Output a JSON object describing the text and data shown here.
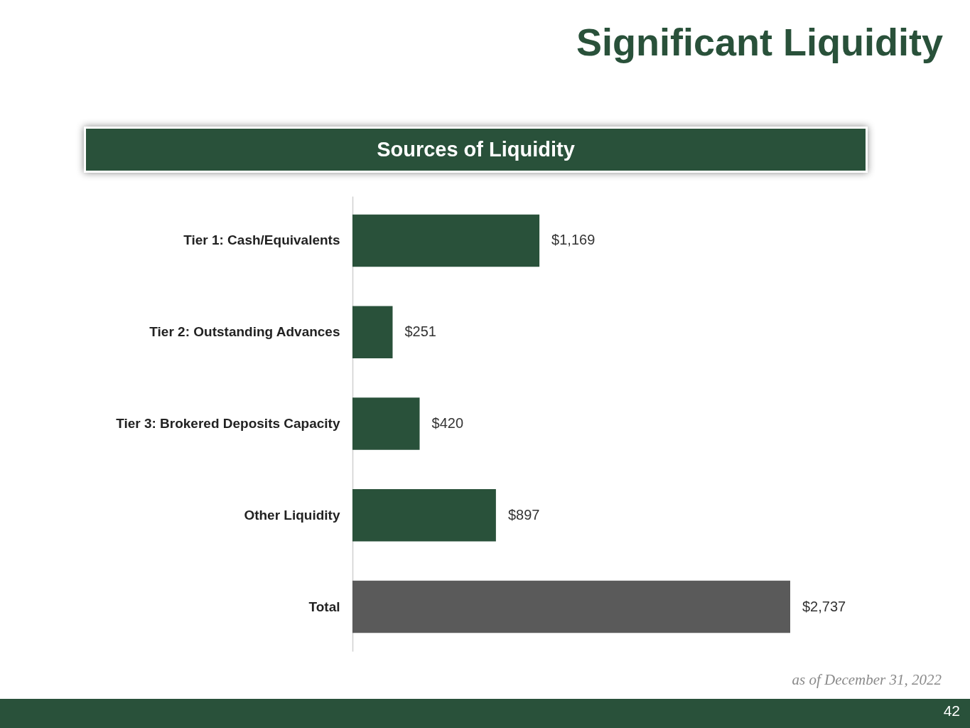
{
  "chart_data": {
    "type": "bar",
    "orientation": "horizontal",
    "title": "Significant Liquidity",
    "subtitle": "Sources of Liquidity",
    "categories": [
      "Tier 1: Cash/Equivalents",
      "Tier 2: Outstanding Advances",
      "Tier 3: Brokered Deposits Capacity",
      "Other Liquidity",
      "Total"
    ],
    "values": [
      1169,
      251,
      420,
      897,
      2737
    ],
    "value_labels": [
      "$1,169",
      "$251",
      "$420",
      "$897",
      "$2,737"
    ],
    "colors": [
      "#29513a",
      "#29513a",
      "#29513a",
      "#29513a",
      "#5a5a5a"
    ],
    "annotations": [
      "as of December 31, 2022",
      "42"
    ]
  }
}
